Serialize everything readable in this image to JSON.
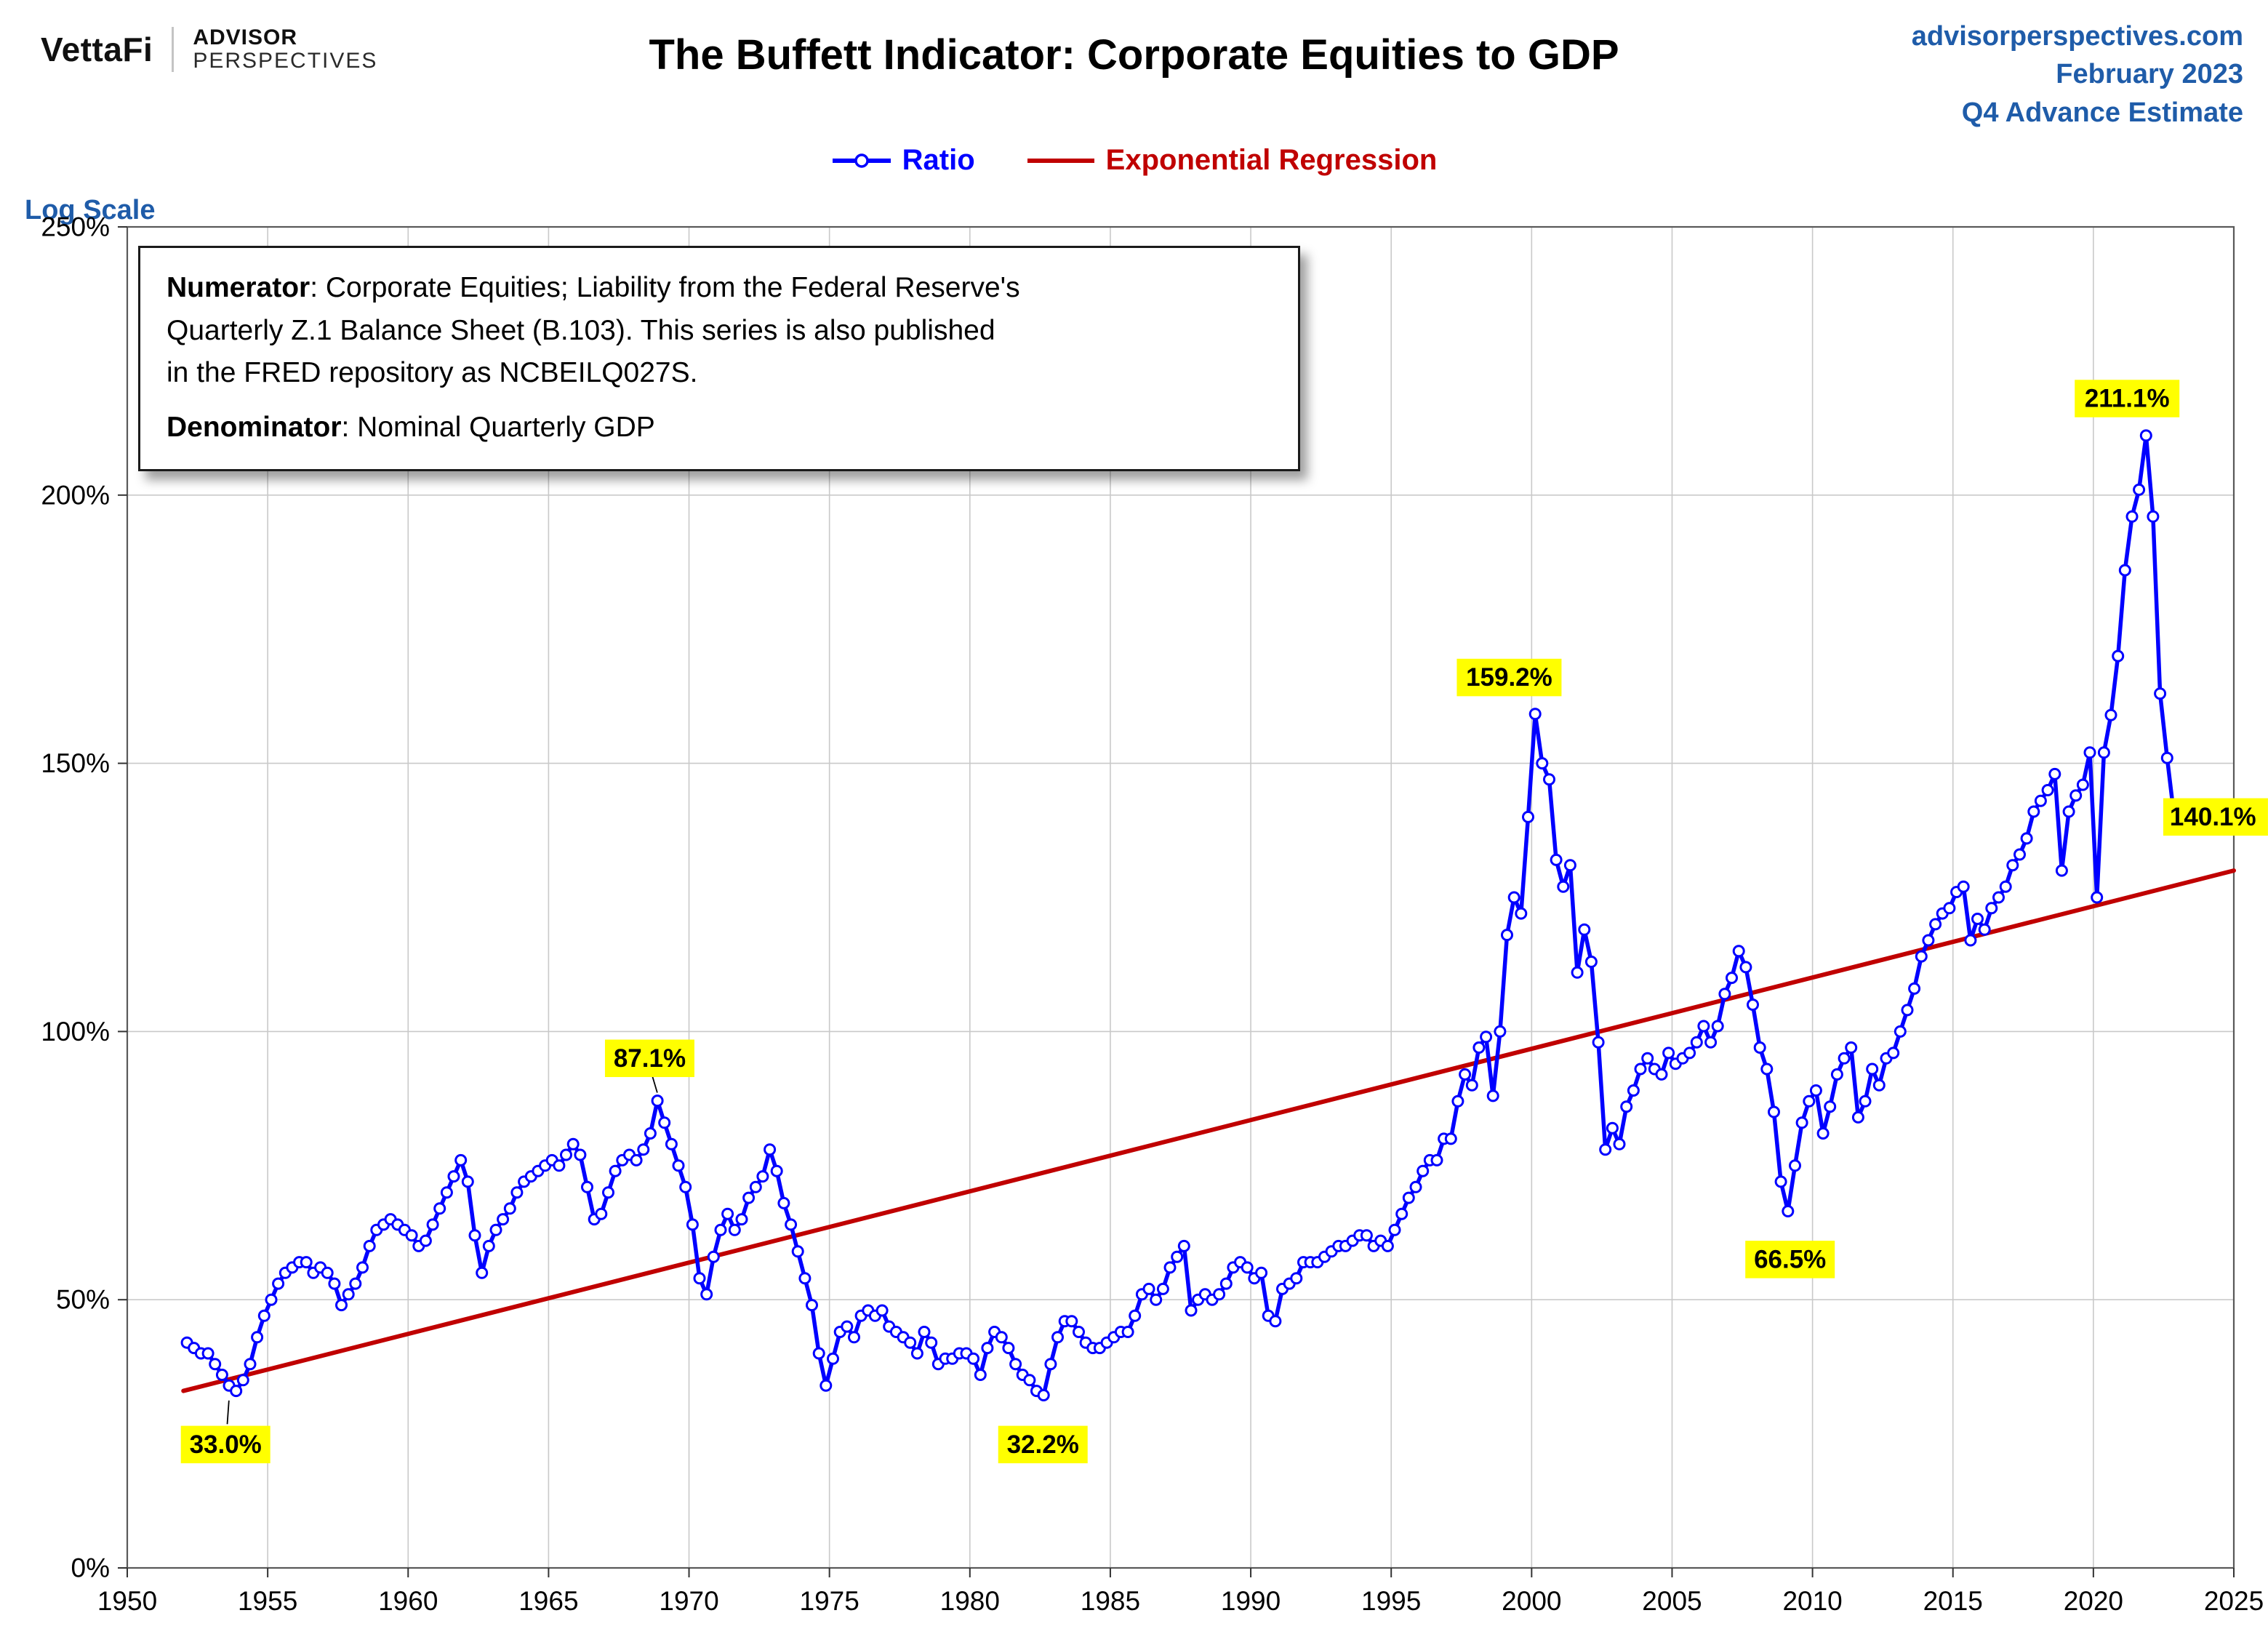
{
  "header": {
    "brand_vettafi": "VettaFi",
    "brand_advisor": "ADVISOR",
    "brand_perspectives": "PERSPECTIVES",
    "title": "The Buffett Indicator: Corporate Equities to GDP",
    "site": "advisorperspectives.com",
    "date_line": "February 2023",
    "estimate_line": "Q4 Advance Estimate"
  },
  "legend": {
    "ratio_label": "Ratio",
    "regression_label": "Exponential Regression"
  },
  "axis": {
    "scale_label": "Log Scale"
  },
  "note": {
    "numerator_label": "Numerator",
    "numerator_text": ": Corporate Equities; Liability from the Federal Reserve's",
    "line2": "Quarterly Z.1 Balance Sheet (B.103). This series is also published",
    "line3": "in the FRED repository as NCBEILQ027S.",
    "denominator_label": "Denominator",
    "denominator_text": ": Nominal Quarterly GDP"
  },
  "colors": {
    "series_blue": "#0000FF",
    "regression_red": "#C00000",
    "header_blue": "#1F5CA9",
    "annotation_bg": "#FFFF00",
    "grid": "#C9C9C9",
    "frame": "#595959"
  },
  "chart_data": {
    "type": "line",
    "title": "The Buffett Indicator: Corporate Equities to GDP",
    "xlabel": "",
    "ylabel": "Log Scale",
    "xlim": [
      1950,
      2025
    ],
    "ylim": [
      0,
      250
    ],
    "x_ticks": [
      1950,
      1955,
      1960,
      1965,
      1970,
      1975,
      1980,
      1985,
      1990,
      1995,
      2000,
      2005,
      2010,
      2015,
      2020,
      2025
    ],
    "y_ticks": [
      0,
      50,
      100,
      150,
      200,
      250
    ],
    "y_tick_suffix": "%",
    "grid": true,
    "legend_position": "top-center",
    "x_start": 1952.125,
    "x_step": 0.25,
    "series": [
      {
        "name": "Ratio",
        "values": [
          42,
          41,
          40,
          40,
          38,
          36,
          34,
          33,
          35,
          38,
          43,
          47,
          50,
          53,
          55,
          56,
          57,
          57,
          55,
          56,
          55,
          53,
          49,
          51,
          53,
          56,
          60,
          63,
          64,
          65,
          64,
          63,
          62,
          60,
          61,
          64,
          67,
          70,
          73,
          76,
          72,
          62,
          55,
          60,
          63,
          65,
          67,
          70,
          72,
          73,
          74,
          75,
          76,
          75,
          77,
          79,
          77,
          71,
          65,
          66,
          70,
          74,
          76,
          77,
          76,
          78,
          81,
          87.1,
          83,
          79,
          75,
          71,
          64,
          54,
          51,
          58,
          63,
          66,
          63,
          65,
          69,
          71,
          73,
          78,
          74,
          68,
          64,
          59,
          54,
          49,
          40,
          34,
          39,
          44,
          45,
          43,
          47,
          48,
          47,
          48,
          45,
          44,
          43,
          42,
          40,
          44,
          42,
          38,
          39,
          39,
          40,
          40,
          39,
          36,
          41,
          44,
          43,
          41,
          38,
          36,
          35,
          33,
          32.2,
          38,
          43,
          46,
          46,
          44,
          42,
          41,
          41,
          42,
          43,
          44,
          44,
          47,
          51,
          52,
          50,
          52,
          56,
          58,
          60,
          48,
          50,
          51,
          50,
          51,
          53,
          56,
          57,
          56,
          54,
          55,
          47,
          46,
          52,
          53,
          54,
          57,
          57,
          57,
          58,
          59,
          60,
          60,
          61,
          62,
          62,
          60,
          61,
          60,
          63,
          66,
          69,
          71,
          74,
          76,
          76,
          80,
          80,
          87,
          92,
          90,
          97,
          99,
          88,
          100,
          118,
          125,
          122,
          140,
          159.2,
          150,
          147,
          132,
          127,
          131,
          111,
          119,
          113,
          98,
          78,
          82,
          79,
          86,
          89,
          93,
          95,
          93,
          92,
          96,
          94,
          95,
          96,
          98,
          101,
          98,
          101,
          107,
          110,
          115,
          112,
          105,
          97,
          93,
          85,
          72,
          66.5,
          75,
          83,
          87,
          89,
          81,
          86,
          92,
          95,
          97,
          84,
          87,
          93,
          90,
          95,
          96,
          100,
          104,
          108,
          114,
          117,
          120,
          122,
          123,
          126,
          127,
          117,
          121,
          119,
          123,
          125,
          127,
          131,
          133,
          136,
          141,
          143,
          145,
          148,
          130,
          141,
          144,
          146,
          152,
          125,
          152,
          159,
          170,
          186,
          196,
          201,
          211.1,
          196,
          163,
          151,
          140.1
        ]
      }
    ],
    "regression_line": {
      "name": "Exponential Regression",
      "x1": 1952,
      "y1": 33,
      "x2": 2025,
      "y2": 130
    },
    "annotations": [
      {
        "text": "33.0%",
        "x": 1953.5,
        "y": 23,
        "anchor": "middle",
        "line": [
          1953.62,
          31.2,
          1953.56,
          26.8
        ]
      },
      {
        "text": "87.1%",
        "x": 1968.6,
        "y": 95,
        "anchor": "middle",
        "line": [
          1968.7,
          91.6,
          1968.87,
          88.6
        ]
      },
      {
        "text": "32.2%",
        "x": 1982.6,
        "y": 23,
        "anchor": "middle"
      },
      {
        "text": "159.2%",
        "x": 1999.2,
        "y": 166,
        "anchor": "middle"
      },
      {
        "text": "66.5%",
        "x": 2009.2,
        "y": 57.5,
        "anchor": "middle"
      },
      {
        "text": "211.1%",
        "x": 2021.2,
        "y": 218,
        "anchor": "middle"
      },
      {
        "text": "140.1%",
        "x": 2022.72,
        "y": 140,
        "anchor": "start"
      }
    ]
  }
}
